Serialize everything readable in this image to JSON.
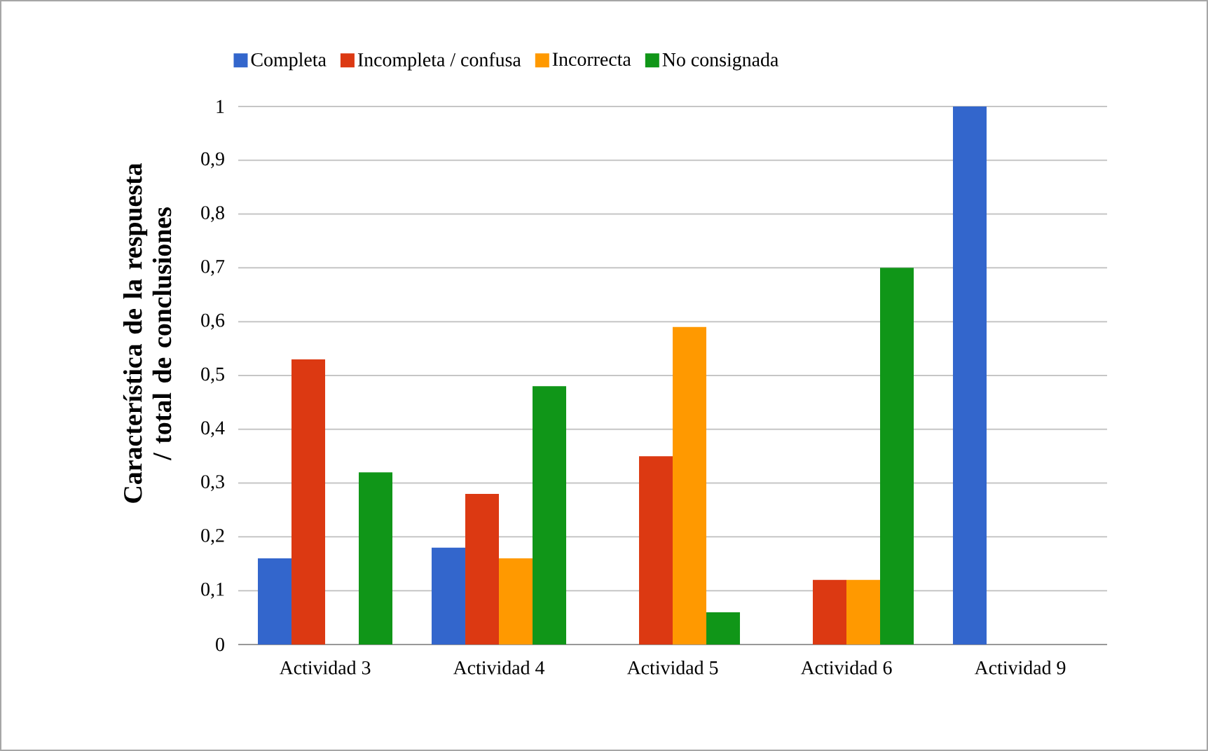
{
  "chart_data": {
    "type": "bar",
    "ylabel": "Característica de la respuesta / total de conclusiones",
    "categories": [
      "Actividad 3",
      "Actividad 4",
      "Actividad 5",
      "Actividad 6",
      "Actividad 9"
    ],
    "series": [
      {
        "name": "Completa",
        "color": "#3366cc",
        "values": [
          0.16,
          0.18,
          null,
          null,
          1.0
        ]
      },
      {
        "name": "Incompleta / confusa",
        "color": "#dc3912",
        "values": [
          0.53,
          0.28,
          0.35,
          0.12,
          null
        ]
      },
      {
        "name": "Incorrecta",
        "color": "#ff9900",
        "values": [
          null,
          0.16,
          0.59,
          0.12,
          null
        ]
      },
      {
        "name": "No consignada",
        "color": "#109618",
        "values": [
          0.32,
          0.48,
          0.06,
          0.7,
          null
        ]
      }
    ],
    "ylim": [
      0,
      1
    ],
    "yticks": [
      0,
      {
        "value": 0.1,
        "label": "0,1"
      },
      {
        "value": 0.2,
        "label": "0,2"
      },
      {
        "value": 0.3,
        "label": "0,3"
      },
      {
        "value": 0.4,
        "label": "0,4"
      },
      {
        "value": 0.5,
        "label": "0,5"
      },
      {
        "value": 0.6,
        "label": "0,6"
      },
      {
        "value": 0.7,
        "label": "0,7"
      },
      {
        "value": 0.8,
        "label": "0,8"
      },
      {
        "value": 0.9,
        "label": "0,9"
      },
      1
    ],
    "grid": "y",
    "legend": "top"
  }
}
